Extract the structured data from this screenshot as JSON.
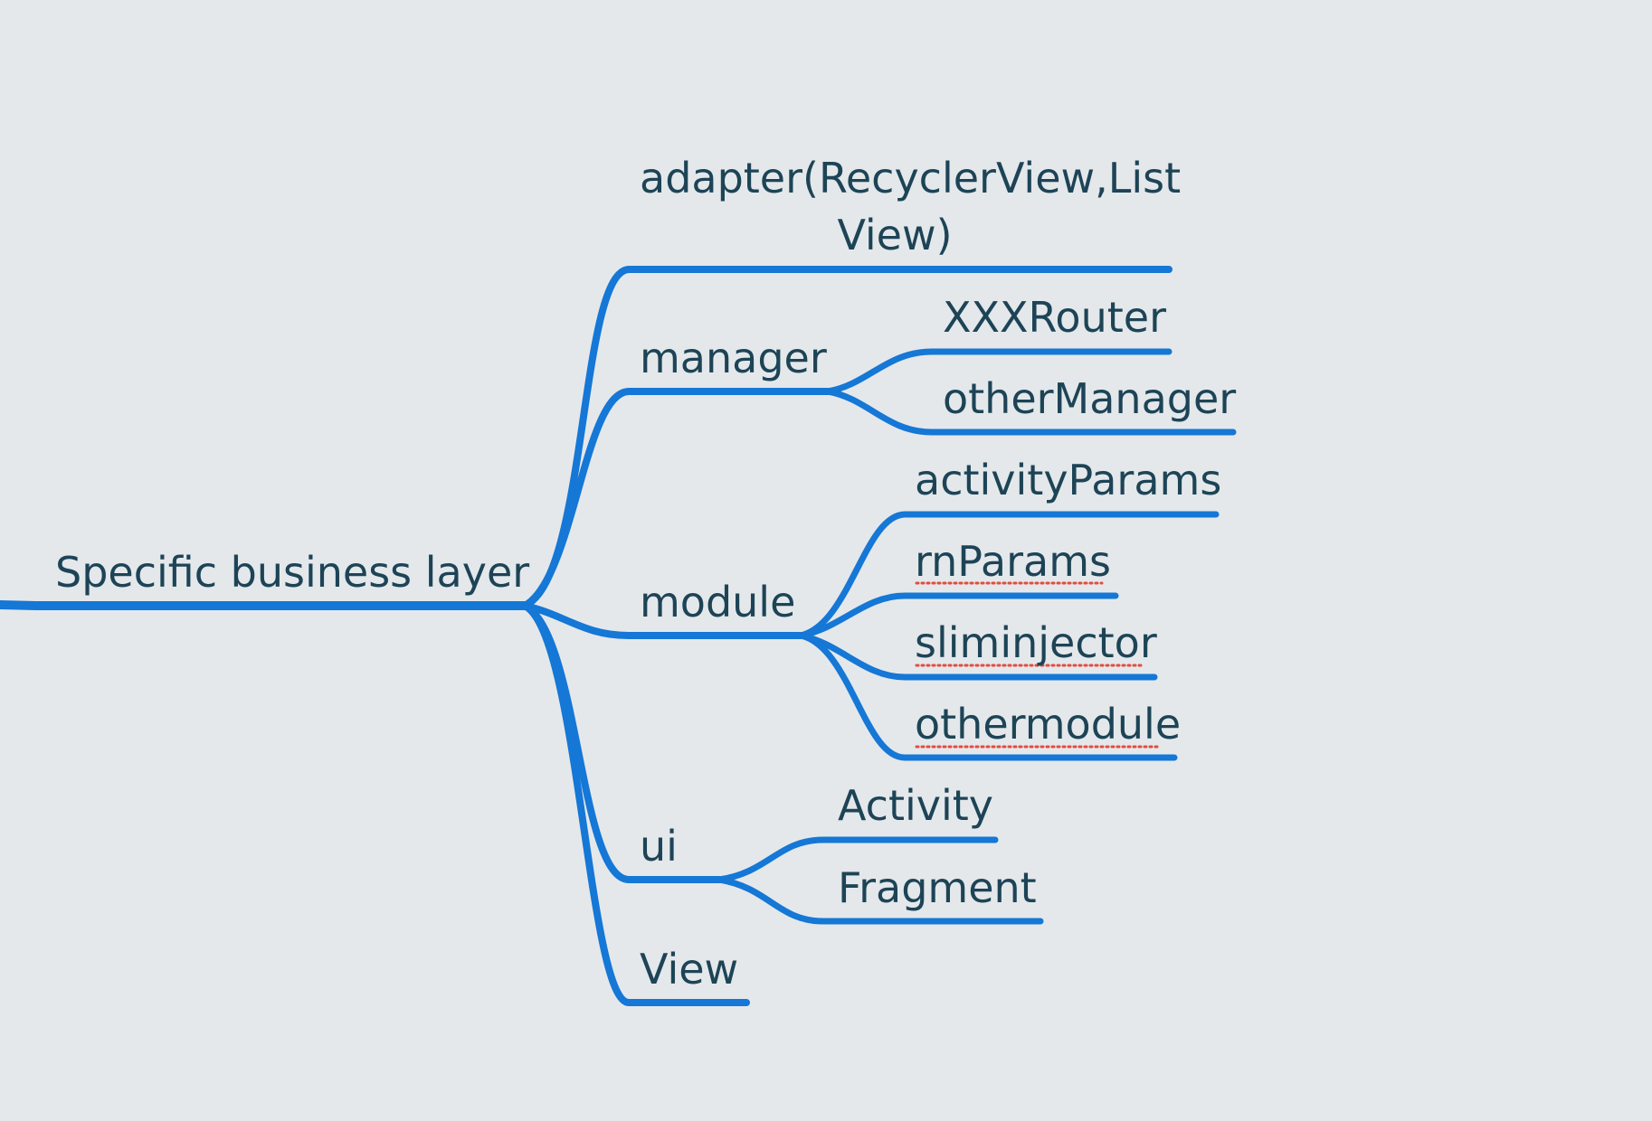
{
  "colors": {
    "background": "#e4e8eb",
    "branch": "#1577d6",
    "text": "#1d4456",
    "spellcheck": "#e34c3f"
  },
  "mindmap": {
    "root": {
      "label": "Specific business layer"
    },
    "nodes": {
      "adapter": {
        "line1": "adapter(RecyclerView,List",
        "line2": "View)"
      },
      "manager": {
        "label": "manager"
      },
      "xxxrouter": {
        "label": "XXXRouter"
      },
      "othermanager": {
        "label": "otherManager"
      },
      "module": {
        "label": "module"
      },
      "activityparams": {
        "label": "activityParams"
      },
      "rnparams": {
        "label": "rnParams"
      },
      "sliminjector": {
        "label": "sliminjector"
      },
      "othermodule": {
        "label": "othermodule"
      },
      "ui": {
        "label": "ui"
      },
      "activity": {
        "label": "Activity"
      },
      "fragment": {
        "label": "Fragment"
      },
      "view": {
        "label": "View"
      }
    }
  }
}
